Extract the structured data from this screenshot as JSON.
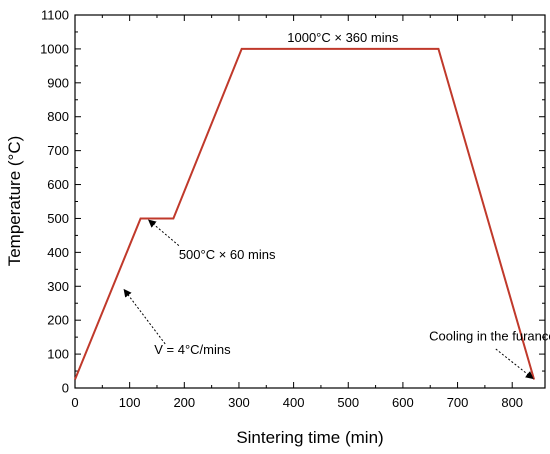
{
  "chart_data": {
    "type": "line",
    "title": "",
    "xlabel": "Sintering time (min)",
    "ylabel": "Temperature (°C)",
    "xlim": [
      0,
      860
    ],
    "ylim": [
      0,
      1100
    ],
    "xticks": [
      0,
      100,
      200,
      300,
      400,
      500,
      600,
      700,
      800
    ],
    "yticks": [
      0,
      100,
      200,
      300,
      400,
      500,
      600,
      700,
      800,
      900,
      1000,
      1100
    ],
    "grid": false,
    "line_color": "#c0392b",
    "series": [
      {
        "x": [
          0,
          120,
          180,
          305,
          665,
          840
        ],
        "y": [
          25,
          500,
          500,
          1000,
          1000,
          25
        ]
      }
    ],
    "annotations": [
      {
        "text": "1000°C × 360 mins",
        "x": 490,
        "y": 1020
      },
      {
        "text": "500°C × 60 mins",
        "x": 190,
        "y": 380,
        "arrow_from": [
          190,
          420
        ],
        "arrow_to": [
          135,
          495
        ]
      },
      {
        "text": "V = 4°C/mins",
        "x": 145,
        "y": 100,
        "arrow_from": [
          165,
          130
        ],
        "arrow_to": [
          90,
          290
        ]
      },
      {
        "text": "Cooling in the furance",
        "x": 648,
        "y": 140,
        "arrow_from": [
          770,
          115
        ],
        "arrow_to": [
          838,
          28
        ]
      }
    ]
  }
}
